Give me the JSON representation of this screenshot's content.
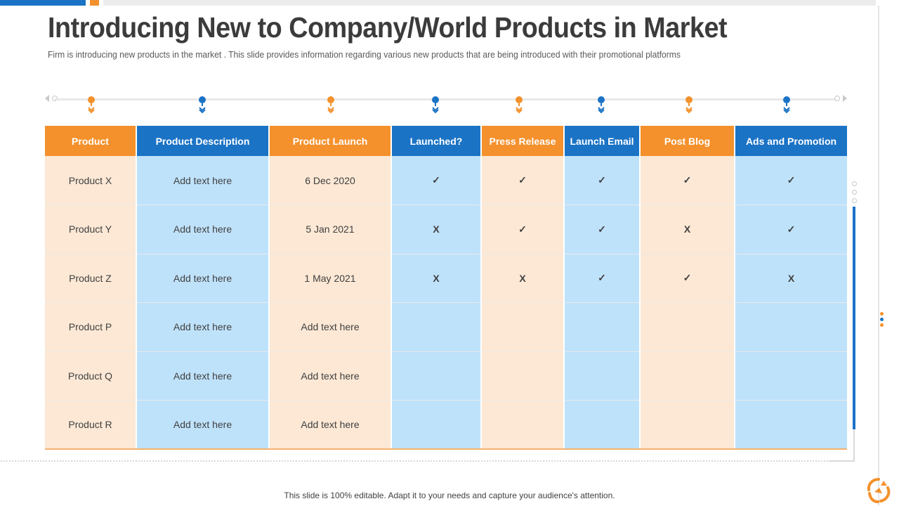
{
  "slide": {
    "title": "Introducing New to Company/World Products in Market",
    "subtitle": "Firm is introducing new products in the market . This slide provides information regarding various new products that are being introduced with their promotional platforms",
    "footer": "This slide is 100% editable. Adapt it to your needs and capture your audience's attention."
  },
  "colors": {
    "accent_orange": "#f4912c",
    "accent_blue": "#1b73c5",
    "cell_orange": "#fce8d5",
    "cell_blue": "#bfe2fb"
  },
  "table": {
    "headers": [
      "Product",
      "Product Description",
      "Product Launch",
      "Launched?",
      "Press Release",
      "Launch Email",
      "Post Blog",
      "Ads and Promotion"
    ],
    "rows": [
      [
        "Product X",
        "Add text here",
        "6 Dec 2020",
        "✓",
        "✓",
        "✓",
        "✓",
        "✓"
      ],
      [
        "Product Y",
        "Add text here",
        "5 Jan 2021",
        "X",
        "✓",
        "✓",
        "X",
        "✓"
      ],
      [
        "Product Z",
        "Add text here",
        "1 May 2021",
        "X",
        "X",
        "✓",
        "✓",
        "X"
      ],
      [
        "Product P",
        "Add text here",
        "Add text here",
        "",
        "",
        "",
        "",
        ""
      ],
      [
        "Product Q",
        "Add text here",
        "Add text here",
        "",
        "",
        "",
        "",
        ""
      ],
      [
        "Product R",
        "Add text here",
        "Add text here",
        "",
        "",
        "",
        "",
        ""
      ]
    ]
  }
}
